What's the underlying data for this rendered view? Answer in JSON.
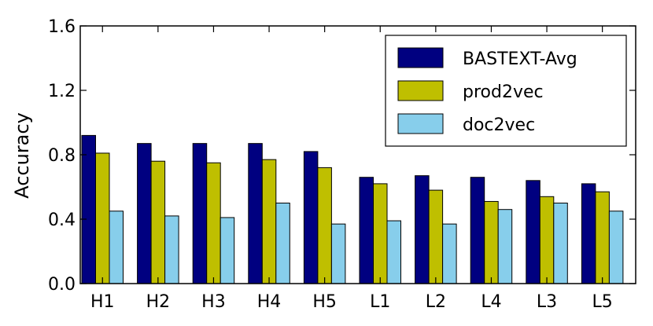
{
  "chart_data": {
    "type": "bar",
    "categories": [
      "H1",
      "H2",
      "H3",
      "H4",
      "H5",
      "L1",
      "L2",
      "L4",
      "L3",
      "L5"
    ],
    "series": [
      {
        "name": "BASTEXT-Avg",
        "color": "#000080",
        "values": [
          0.92,
          0.87,
          0.87,
          0.87,
          0.82,
          0.66,
          0.67,
          0.66,
          0.64,
          0.62
        ]
      },
      {
        "name": "prod2vec",
        "color": "#bfbf00",
        "values": [
          0.81,
          0.76,
          0.75,
          0.77,
          0.72,
          0.62,
          0.58,
          0.51,
          0.54,
          0.57
        ]
      },
      {
        "name": "doc2vec",
        "color": "#87ceeb",
        "values": [
          0.45,
          0.42,
          0.41,
          0.5,
          0.37,
          0.39,
          0.37,
          0.46,
          0.5,
          0.45
        ]
      }
    ],
    "title": "",
    "xlabel": "",
    "ylabel": "Accuracy",
    "ylim": [
      0.0,
      1.6
    ],
    "yticks": [
      "0.0",
      "0.4",
      "0.8",
      "1.2",
      "1.6"
    ],
    "grid": false,
    "legend_position": "top-right"
  }
}
